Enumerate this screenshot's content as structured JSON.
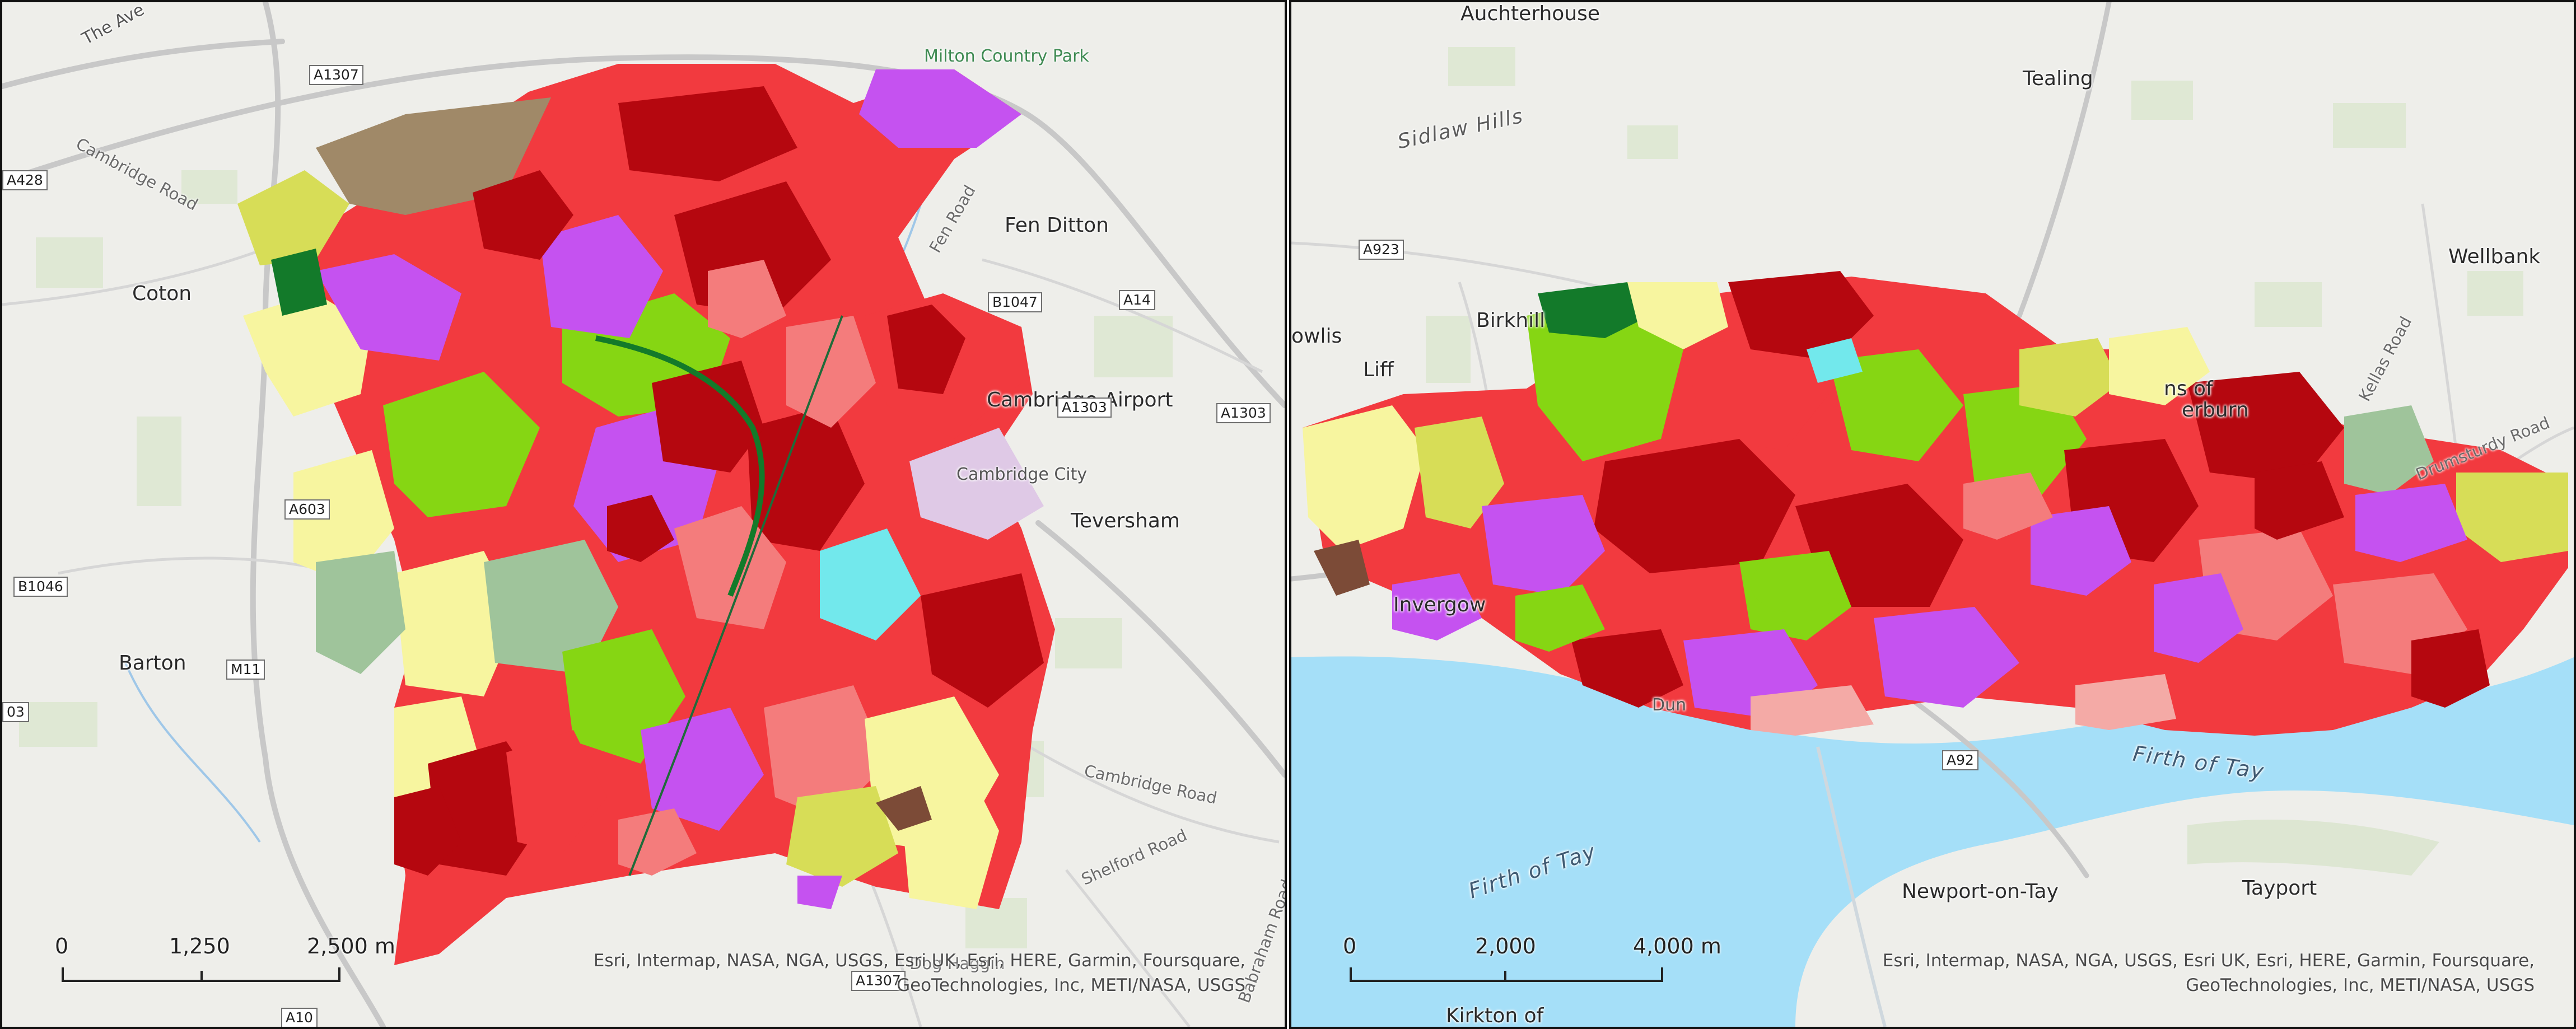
{
  "left_map": {
    "places": {
      "milton_country_park": "Milton Country Park",
      "fen_ditton": "Fen Ditton",
      "coton": "Coton",
      "cambridge_airport": "Cambridge Airport",
      "cambridge_city": "Cambridge City",
      "teversham": "Teversham",
      "barton": "Barton",
      "the_avenue": "The Ave"
    },
    "roads": {
      "cambridge_road_nw": "Cambridge Road",
      "cambridge_road_e": "Cambridge Road",
      "shelford_road": "Shelford Road",
      "babraham_road": "Babraham Road",
      "fen_road": "Fen Road",
      "dog_haggin": "Dog Haggin"
    },
    "shields": {
      "a1307_top": "A1307",
      "a428": "A428",
      "b1047": "B1047",
      "a14": "A14",
      "a1303_a": "A1303",
      "a1303_b": "A1303",
      "a603": "A603",
      "b1046": "B1046",
      "m11": "M11",
      "a1307_bottom": "A1307",
      "a10": "A10",
      "a03": "03"
    },
    "scale": {
      "zero": "0",
      "mid": "1,250",
      "end": "2,500 m"
    },
    "attribution": {
      "line1": "Esri, Intermap, NASA, NGA, USGS, Esri UK, Esri, HERE, Garmin, Foursquare,",
      "line2": "GeoTechnologies, Inc, METI/NASA, USGS"
    }
  },
  "right_map": {
    "places": {
      "auchterhouse": "Auchterhouse",
      "tealing": "Tealing",
      "sidlaw_hills": "Sidlaw Hills",
      "wellbank": "Wellbank",
      "birkhill": "Birkhill",
      "liff": "Liff",
      "fowlis": "owlis",
      "invergowrie": "Invergow",
      "mains_of_fintry": "ns of",
      "baldovie": "erburn",
      "firth_of_tay_east": "Firth of Tay",
      "firth_of_tay_west": "Firth of Tay",
      "newport": "Newport-on-Tay",
      "tayport": "Tayport",
      "kirkton": "Kirkton of",
      "dundee_airport": "Dun"
    },
    "roads": {
      "kellas_road": "Kellas Road",
      "drumsturdy_road": "Drumsturdy Road"
    },
    "shields": {
      "a923": "A923",
      "a92": "A92"
    },
    "scale": {
      "zero": "0",
      "mid": "2,000",
      "end": "4,000 m"
    },
    "attribution": {
      "line1": "Esri, Intermap, NASA, NGA, USGS, Esri UK, Esri, HERE, Garmin, Foursquare,",
      "line2": "GeoTechnologies, Inc, METI/NASA, USGS"
    }
  },
  "legend_colors": {
    "dense_urban_dark_red": "#b5070f",
    "urban_red": "#f23a3f",
    "suburban_salmon": "#f47c7c",
    "light_pink": "#f4aaa6",
    "magenta_purple": "#c552f0",
    "lime_green": "#86d613",
    "dark_green": "#137a2a",
    "sage_green": "#9fc49b",
    "pale_yellow": "#f7f59f",
    "olive_yellow": "#d7dd57",
    "brown": "#a08968",
    "dark_brown": "#7c4b37",
    "cyan": "#72e8ec",
    "lavender": "#dfc9e6",
    "water_blue": "#a5dff8",
    "basemap_grey": "#eeeeea"
  }
}
